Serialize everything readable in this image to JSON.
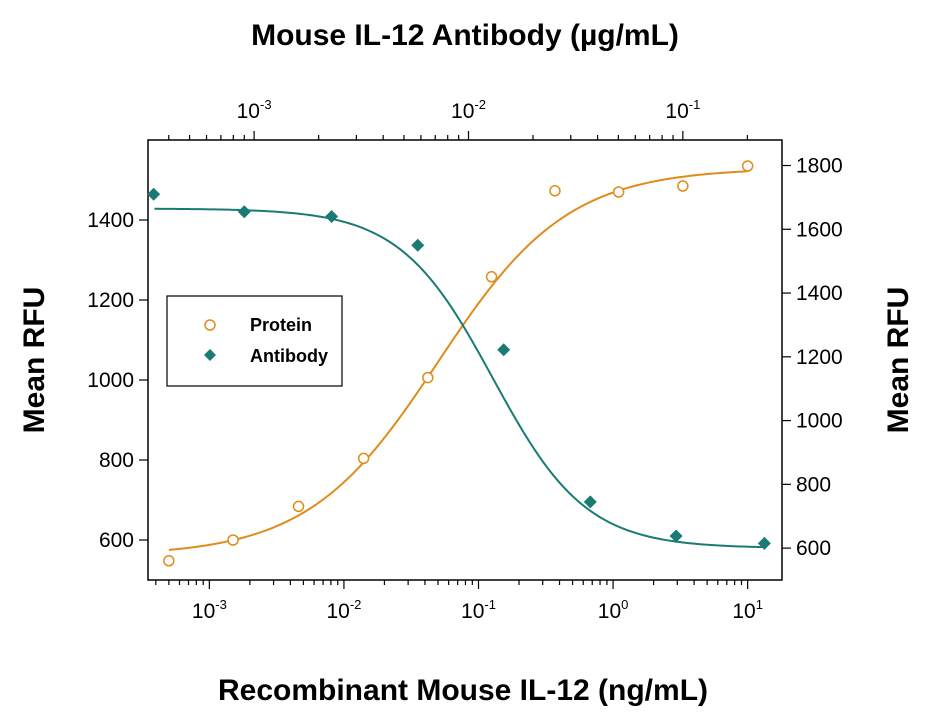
{
  "chart_data": {
    "type": "scatter",
    "top_title": "Mouse IL-12 Antibody (µg/mL)",
    "xlabel": "Recombinant Mouse IL-12 (ng/mL)",
    "ylabel_left": "Mean RFU",
    "ylabel_right": "Mean RFU",
    "x_scale": "log",
    "xlim": [
      0.00035,
      18
    ],
    "x_ticks": [
      {
        "base": "10",
        "exp": "-3",
        "value": 0.001
      },
      {
        "base": "10",
        "exp": "-2",
        "value": 0.01
      },
      {
        "base": "10",
        "exp": "-1",
        "value": 0.1
      },
      {
        "base": "10",
        "exp": "0",
        "value": 1
      },
      {
        "base": "10",
        "exp": "1",
        "value": 10
      }
    ],
    "top_x_scale": "log",
    "top_xlim": [
      0.00032,
      0.29
    ],
    "top_x_ticks": [
      {
        "base": "10",
        "exp": "-3",
        "value": 0.001
      },
      {
        "base": "10",
        "exp": "-2",
        "value": 0.01
      },
      {
        "base": "10",
        "exp": "-1",
        "value": 0.1
      }
    ],
    "ylim_left": [
      500,
      1600
    ],
    "yticks_left": [
      "600",
      "800",
      "1000",
      "1200",
      "1400"
    ],
    "ylim_right": [
      500,
      1880
    ],
    "yticks_right": [
      "600",
      "800",
      "1000",
      "1200",
      "1400",
      "1600",
      "1800"
    ],
    "grid": false,
    "legend": {
      "placement": "middle-left"
    },
    "series": [
      {
        "name": "Protein",
        "axis": "left",
        "x_axis": "bottom",
        "marker": "open-circle",
        "color": "#e08c1a",
        "points": [
          {
            "x": 0.0005,
            "y": 548
          },
          {
            "x": 0.0015,
            "y": 600
          },
          {
            "x": 0.0046,
            "y": 684
          },
          {
            "x": 0.014,
            "y": 804
          },
          {
            "x": 0.042,
            "y": 1006
          },
          {
            "x": 0.125,
            "y": 1258
          },
          {
            "x": 0.37,
            "y": 1473
          },
          {
            "x": 1.1,
            "y": 1470
          },
          {
            "x": 3.3,
            "y": 1485
          },
          {
            "x": 10,
            "y": 1535
          }
        ],
        "fit": {
          "bottom": 560,
          "top": 1530,
          "ec50": 0.05,
          "hill": 0.9
        }
      },
      {
        "name": "Antibody",
        "axis": "right",
        "x_axis": "top",
        "marker": "filled-diamond",
        "color": "#1a7a74",
        "points": [
          {
            "x": 0.00034,
            "y": 1710
          },
          {
            "x": 0.0009,
            "y": 1655
          },
          {
            "x": 0.0023,
            "y": 1640
          },
          {
            "x": 0.0058,
            "y": 1550
          },
          {
            "x": 0.0146,
            "y": 1222
          },
          {
            "x": 0.037,
            "y": 745
          },
          {
            "x": 0.093,
            "y": 638
          },
          {
            "x": 0.24,
            "y": 615
          }
        ],
        "fit": {
          "bottom": 600,
          "top": 1665,
          "ic50": 0.013,
          "hill": 2.0
        }
      }
    ]
  }
}
